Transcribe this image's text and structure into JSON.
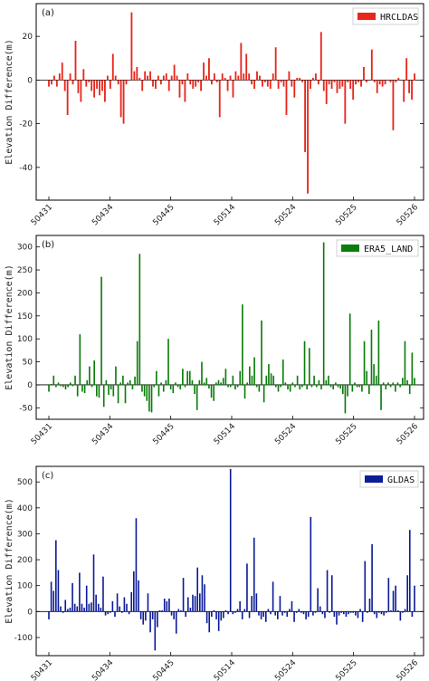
{
  "chart_data": [
    {
      "type": "bar",
      "panel_label": "(a)",
      "ylabel": "Elevation Difference(m)",
      "ylim": [
        -55,
        35
      ],
      "yticks": [
        -40,
        -20,
        0,
        20
      ],
      "xtick_labels": [
        "50431",
        "50434",
        "50445",
        "50514",
        "50524",
        "50525",
        "50526"
      ],
      "legend": "top-right",
      "grid": false,
      "color": "#e8261b",
      "series": [
        {
          "name": "HRCLDAS",
          "values": [
            -3,
            -2,
            2,
            -3,
            3,
            8,
            -5,
            -16,
            3,
            -2,
            18,
            -6,
            -10,
            5,
            -3,
            -1,
            -5,
            -8,
            -4,
            -7,
            -5,
            -10,
            2,
            -4,
            12,
            2,
            -2,
            -17,
            -20,
            -2,
            0,
            31,
            4,
            6,
            1,
            -5,
            4,
            2,
            4,
            -3,
            -4,
            2,
            -2,
            2,
            3,
            -5,
            2,
            7,
            2,
            -8,
            -2,
            -10,
            3,
            -2,
            -4,
            -3,
            -1,
            -5,
            8,
            2,
            10,
            -2,
            3,
            -1,
            -17,
            3,
            1,
            -5,
            2,
            -8,
            4,
            2,
            17,
            3,
            12,
            3,
            -2,
            -4,
            4,
            2,
            -3,
            -1,
            -3,
            -4,
            3,
            15,
            -4,
            -1,
            -3,
            -16,
            4,
            -3,
            -8,
            1,
            1,
            -1,
            -33,
            -52,
            -4,
            1,
            3,
            -2,
            22,
            -5,
            -11,
            -2,
            -4,
            -1,
            -6,
            -4,
            -3,
            -20,
            -1,
            -4,
            -9,
            -2,
            -1,
            -3,
            6,
            -1,
            0,
            14,
            -1,
            -6,
            -2,
            -3,
            -2,
            0,
            -1,
            -23,
            -1,
            1,
            0,
            -10,
            10,
            -6,
            -9,
            3
          ]
        }
      ]
    },
    {
      "type": "bar",
      "panel_label": "(b)",
      "ylabel": "Elevation Difference(m)",
      "ylim": [
        -75,
        325
      ],
      "yticks": [
        -50,
        0,
        50,
        100,
        150,
        200,
        250,
        300
      ],
      "xtick_labels": [
        "50431",
        "50434",
        "50445",
        "50514",
        "50524",
        "50525",
        "50526"
      ],
      "legend": "top-right",
      "grid": false,
      "color": "#0b7d0b",
      "series": [
        {
          "name": "ERA5_LAND",
          "values": [
            -15,
            2,
            20,
            -5,
            5,
            -3,
            -5,
            -10,
            -5,
            5,
            -3,
            20,
            -25,
            110,
            -15,
            -18,
            10,
            40,
            -5,
            53,
            -25,
            -28,
            235,
            -48,
            10,
            -22,
            -10,
            -25,
            40,
            -40,
            5,
            20,
            -40,
            5,
            10,
            -10,
            18,
            95,
            285,
            -15,
            -25,
            -35,
            -58,
            -60,
            -5,
            30,
            -25,
            5,
            -15,
            10,
            100,
            -10,
            -18,
            5,
            -5,
            -10,
            35,
            -5,
            30,
            30,
            10,
            -20,
            -55,
            10,
            50,
            5,
            15,
            -8,
            -28,
            -35,
            5,
            10,
            5,
            15,
            35,
            -5,
            -5,
            20,
            -10,
            -5,
            30,
            175,
            -30,
            5,
            40,
            20,
            60,
            -5,
            -15,
            140,
            -38,
            20,
            45,
            25,
            20,
            -5,
            -15,
            -5,
            55,
            5,
            -10,
            -15,
            5,
            -5,
            20,
            -10,
            -5,
            95,
            -10,
            80,
            -5,
            20,
            -5,
            10,
            -10,
            310,
            10,
            20,
            -5,
            -10,
            5,
            -5,
            -8,
            -20,
            -62,
            -25,
            155,
            -15,
            5,
            -5,
            -5,
            -15,
            95,
            30,
            -20,
            120,
            45,
            20,
            140,
            -55,
            5,
            -10,
            5,
            -5,
            5,
            -15,
            5,
            -5,
            15,
            95,
            10,
            -20,
            70,
            15
          ]
        }
      ]
    },
    {
      "type": "bar",
      "panel_label": "(c)",
      "ylabel": "Elevation Difference(m)",
      "ylim": [
        -170,
        560
      ],
      "yticks": [
        -100,
        0,
        100,
        200,
        300,
        400,
        500
      ],
      "xtick_labels": [
        "50431",
        "50434",
        "50445",
        "50514",
        "50524",
        "50525",
        "50526"
      ],
      "legend": "top-right",
      "grid": false,
      "color": "#0c1c96",
      "series": [
        {
          "name": "GLDAS",
          "values": [
            -30,
            115,
            80,
            275,
            160,
            20,
            -5,
            45,
            10,
            15,
            110,
            30,
            20,
            150,
            30,
            15,
            100,
            30,
            35,
            220,
            65,
            30,
            15,
            135,
            -15,
            -10,
            -5,
            40,
            -20,
            70,
            20,
            -5,
            55,
            30,
            -10,
            75,
            155,
            360,
            120,
            -30,
            -50,
            -35,
            70,
            -80,
            -30,
            -150,
            -60,
            5,
            5,
            50,
            40,
            50,
            -15,
            -30,
            -85,
            10,
            5,
            130,
            -20,
            55,
            15,
            65,
            60,
            170,
            70,
            140,
            105,
            -45,
            -80,
            -20,
            5,
            -30,
            -75,
            -35,
            -25,
            5,
            -10,
            550,
            -10,
            -5,
            10,
            40,
            -30,
            10,
            185,
            -25,
            60,
            285,
            70,
            -15,
            -30,
            -20,
            -40,
            10,
            -10,
            115,
            -15,
            -30,
            60,
            -15,
            -5,
            -20,
            10,
            40,
            -40,
            -5,
            10,
            -5,
            -10,
            -30,
            -20,
            365,
            -15,
            -5,
            90,
            20,
            -10,
            -25,
            160,
            -5,
            140,
            -20,
            -50,
            -15,
            -5,
            -10,
            -20,
            -10,
            -5,
            -5,
            -15,
            -25,
            10,
            -40,
            195,
            -5,
            50,
            260,
            -10,
            -25,
            -5,
            -10,
            -15,
            -5,
            130,
            5,
            80,
            100,
            5,
            -35,
            -5,
            10,
            140,
            315,
            -20,
            100
          ]
        }
      ]
    }
  ]
}
